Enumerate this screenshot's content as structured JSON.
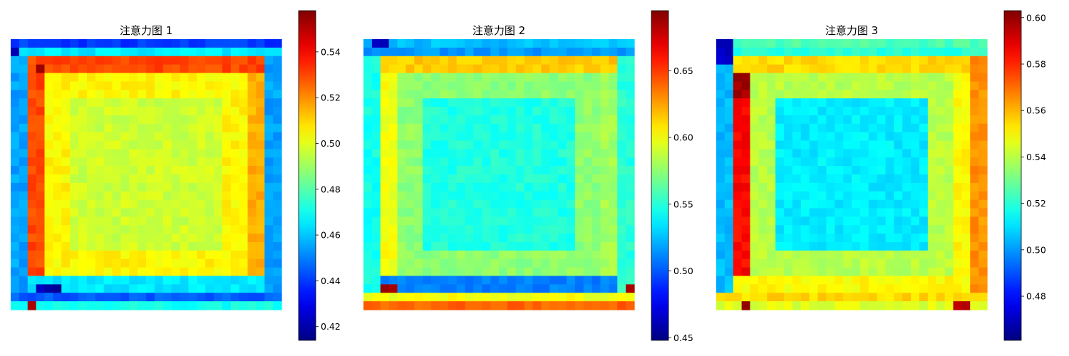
{
  "figure": {
    "width": 1500,
    "height": 500,
    "background": "#ffffff"
  },
  "chart_data": [
    {
      "type": "heatmap",
      "title": "注意力图 1",
      "size": 32,
      "colormap": "jet",
      "vmin": 0.414,
      "vmax": 0.558,
      "colorbar_ticks": [
        0.42,
        0.44,
        0.46,
        0.48,
        0.5,
        0.52,
        0.54
      ],
      "levels": {
        "border_top": 0.44,
        "border_top_strip": 0.465,
        "border_bottom": 0.445,
        "border_bottom_strip": 0.47,
        "border_left": 0.455,
        "border_right": 0.455,
        "inner_ring_top": 0.53,
        "inner_ring_bottom": 0.465,
        "inner_ring_left": 0.53,
        "inner_ring_right": 0.515,
        "second_ring": 0.505,
        "center": 0.497,
        "corner_dark": 0.42,
        "corner_hot": 0.555
      },
      "axis": "off"
    },
    {
      "type": "heatmap",
      "title": "注意力图 2",
      "size": 32,
      "colormap": "jet",
      "vmin": 0.448,
      "vmax": 0.695,
      "colorbar_ticks": [
        0.45,
        0.5,
        0.55,
        0.6,
        0.65
      ],
      "levels": {
        "border_top": 0.525,
        "border_top_strip": 0.515,
        "border_bottom": 0.6,
        "border_bottom_strip": 0.64,
        "border_left": 0.545,
        "border_right": 0.55,
        "inner_ring_top": 0.615,
        "inner_ring_bottom": 0.51,
        "inner_ring_left": 0.6,
        "inner_ring_right": 0.58,
        "second_ring": 0.575,
        "center": 0.548,
        "corner_dark": 0.46,
        "corner_hot": 0.685
      },
      "axis": "off"
    },
    {
      "type": "heatmap",
      "title": "注意力图 3",
      "size": 32,
      "colormap": "jet",
      "vmin": 0.461,
      "vmax": 0.603,
      "colorbar_ticks": [
        0.48,
        0.5,
        0.52,
        0.54,
        0.56,
        0.58,
        0.6
      ],
      "levels": {
        "border_top": 0.525,
        "border_top_strip": 0.52,
        "border_bottom": 0.555,
        "border_bottom_strip": 0.545,
        "border_left": 0.505,
        "border_right": 0.565,
        "inner_ring_top": 0.555,
        "inner_ring_bottom": 0.55,
        "inner_ring_left": 0.585,
        "inner_ring_right": 0.55,
        "second_ring": 0.54,
        "center": 0.512,
        "corner_dark": 0.47,
        "corner_hot": 0.598
      },
      "axis": "off"
    }
  ]
}
